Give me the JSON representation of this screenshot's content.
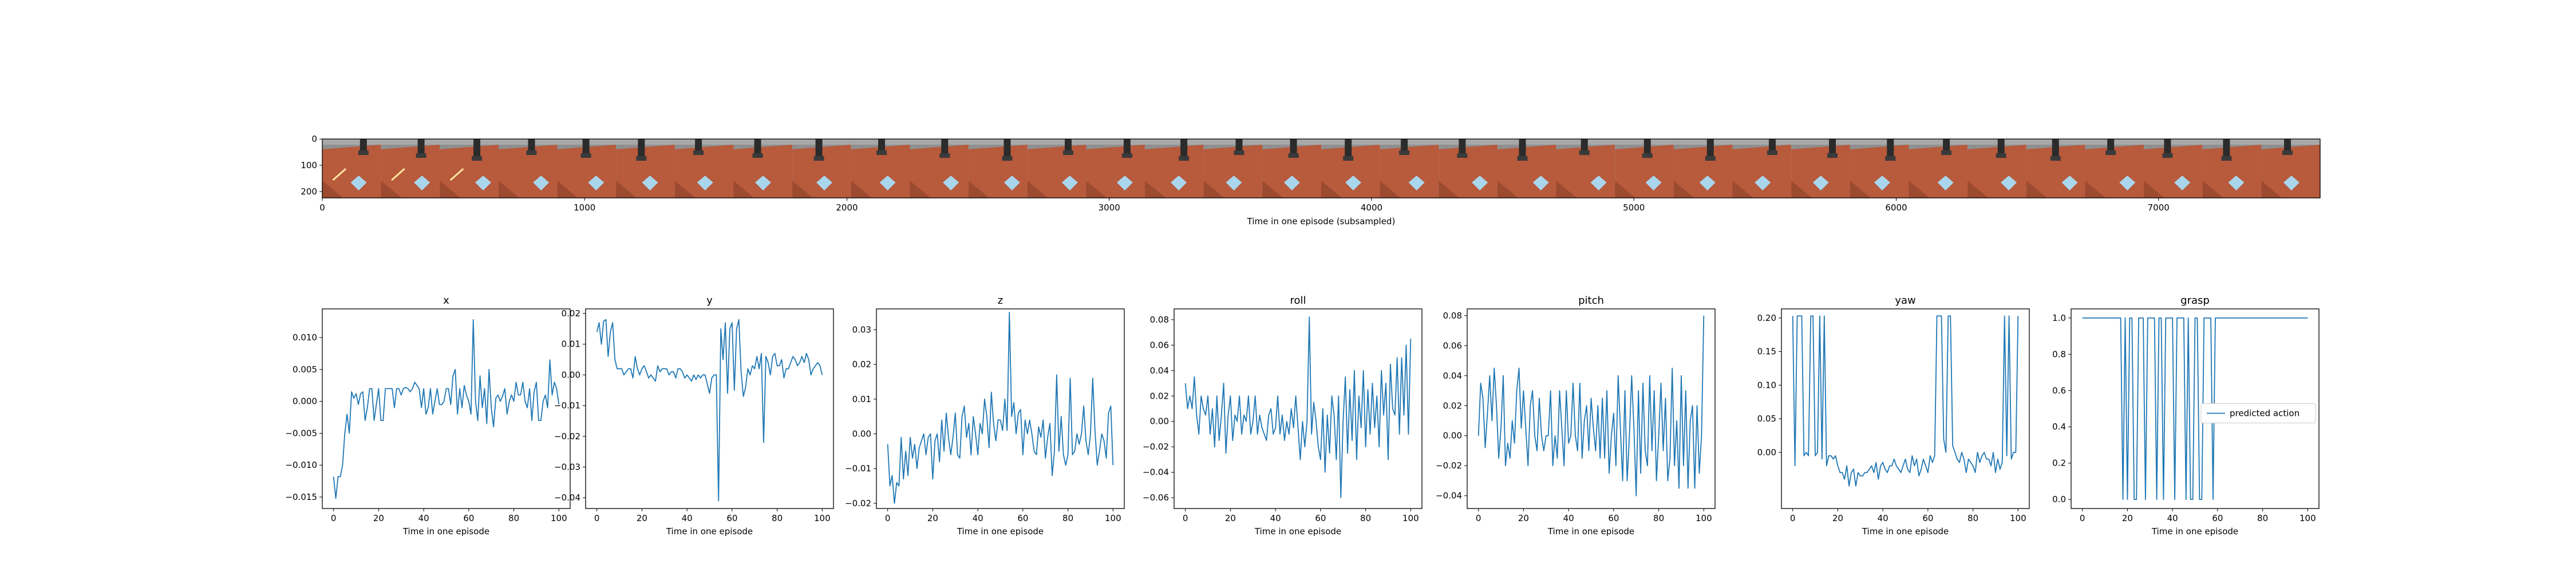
{
  "filmstrip": {
    "xlabel": "Time in one episode (subsampled)",
    "xticks": [
      0,
      1000,
      2000,
      3000,
      4000,
      5000,
      6000,
      7000
    ],
    "yticks": [
      0,
      100,
      200
    ],
    "xlim": [
      0,
      7616
    ],
    "ylim": [
      224,
      0
    ],
    "frame_count": 34
  },
  "colors": {
    "line": "#1f77b4",
    "axes": "#000000",
    "wall": "#8f8f8f",
    "table": "#b85a3c",
    "cloth": "#a9d6ec",
    "gripper": "#2b2b2b",
    "arrow": "#ffe7a0"
  },
  "chart_data": [
    {
      "type": "line",
      "title": "x",
      "xlabel": "Time in one episode",
      "ylabel": "",
      "xlim": [
        -5,
        105
      ],
      "ylim": [
        -0.0168,
        0.0145
      ],
      "xticks": [
        0,
        20,
        40,
        60,
        80,
        100
      ],
      "yticks": [
        -0.015,
        -0.01,
        -0.005,
        0.0,
        0.005,
        0.01
      ],
      "ytick_labels": [
        "−0.015",
        "−0.010",
        "−0.005",
        "0.000",
        "0.005",
        "0.010"
      ],
      "series": [
        {
          "values": [
            -0.0118,
            -0.0152,
            -0.0118,
            -0.0118,
            -0.01,
            -0.005,
            -0.002,
            -0.005,
            0.0015,
            0.0005,
            0.0012,
            -0.0005,
            0.0012,
            0.0015,
            -0.003,
            -0.001,
            0.002,
            0.002,
            -0.003,
            -0.0005,
            0.002,
            -0.003,
            -0.003,
            0.002,
            0.002,
            0.002,
            0.002,
            -0.001,
            0.002,
            0.002,
            0.001,
            0.002,
            0.0022,
            0.002,
            0.0015,
            0.002,
            0.003,
            0.0025,
            0.002,
            -0.001,
            0.002,
            -0.002,
            -0.001,
            0.002,
            -0.002,
            0.0,
            0.002,
            -0.0005,
            -0.0005,
            0.0,
            0.002,
            0.002,
            -0.0005,
            0.004,
            0.005,
            -0.002,
            0.002,
            -0.001,
            0.0025,
            0.001,
            0.0,
            -0.002,
            0.0128,
            0.0,
            -0.003,
            0.004,
            -0.001,
            0.002,
            -0.0035,
            0.005,
            -0.001,
            -0.004,
            0.0005,
            0.001,
            0.0,
            0.0008,
            0.002,
            -0.002,
            0.0,
            0.001,
            0.0,
            0.003,
            0.001,
            0.001,
            0.003,
            0.0,
            -0.001,
            0.002,
            -0.003,
            0.0015,
            0.003,
            -0.003,
            -0.003,
            0.0,
            0.001,
            -0.001,
            0.0065,
            0.001,
            0.003,
            0.002,
            -0.0005
          ]
        }
      ]
    },
    {
      "type": "line",
      "title": "y",
      "xlabel": "Time in one episode",
      "ylabel": "",
      "xlim": [
        -5,
        105
      ],
      "ylim": [
        -0.0435,
        0.0215
      ],
      "xticks": [
        0,
        20,
        40,
        60,
        80,
        100
      ],
      "yticks": [
        -0.04,
        -0.03,
        -0.02,
        -0.01,
        0.0,
        0.01,
        0.02
      ],
      "ytick_labels": [
        "−0.04",
        "−0.03",
        "−0.02",
        "−0.01",
        "0.00",
        "0.01",
        "0.02"
      ],
      "series": [
        {
          "values": [
            0.014,
            0.017,
            0.01,
            0.0175,
            0.018,
            0.006,
            0.014,
            0.017,
            0.005,
            0.002,
            0.002,
            0.002,
            0.0,
            0.001,
            0.002,
            0.002,
            -0.001,
            0.006,
            0.002,
            0.0,
            0.002,
            0.003,
            0.001,
            -0.001,
            0.0,
            -0.001,
            -0.002,
            0.003,
            0.001,
            0.002,
            0.002,
            0.002,
            0.0,
            0.001,
            0.001,
            -0.001,
            0.002,
            0.002,
            0.001,
            -0.001,
            0.0,
            -0.001,
            -0.002,
            0.0,
            -0.0015,
            0.0,
            -0.001,
            0.0,
            0.0,
            -0.003,
            -0.006,
            -0.001,
            0.0,
            0.0,
            -0.041,
            0.015,
            0.005,
            0.017,
            -0.006,
            0.015,
            0.017,
            -0.005,
            0.015,
            0.018,
            0.001,
            -0.007,
            -0.004,
            0.002,
            0.0,
            0.003,
            0.002,
            0.006,
            0.002,
            0.007,
            -0.022,
            0.006,
            0.004,
            0.0,
            0.006,
            0.007,
            0.003,
            0.003,
            0.005,
            -0.001,
            0.002,
            0.002,
            0.004,
            0.006,
            0.005,
            0.003,
            0.004,
            0.006,
            0.004,
            0.007,
            0.005,
            0.0,
            0.002,
            0.003,
            0.004,
            0.003,
            0.0
          ]
        }
      ]
    },
    {
      "type": "line",
      "title": "z",
      "xlabel": "Time in one episode",
      "ylabel": "",
      "xlim": [
        -5,
        105
      ],
      "ylim": [
        -0.0215,
        0.036
      ],
      "xticks": [
        0,
        20,
        40,
        60,
        80,
        100
      ],
      "yticks": [
        -0.02,
        -0.01,
        0.0,
        0.01,
        0.02,
        0.03
      ],
      "ytick_labels": [
        "−0.02",
        "−0.01",
        "0.00",
        "0.01",
        "0.02",
        "0.03"
      ],
      "series": [
        {
          "values": [
            -0.003,
            -0.015,
            -0.012,
            -0.02,
            -0.014,
            -0.015,
            -0.001,
            -0.013,
            -0.005,
            -0.012,
            -0.001,
            -0.007,
            -0.003,
            -0.01,
            -0.004,
            -0.002,
            0.0,
            -0.006,
            -0.001,
            0.0,
            -0.013,
            -0.002,
            0.0,
            -0.008,
            0.004,
            -0.005,
            0.006,
            -0.001,
            -0.006,
            -0.001,
            0.006,
            -0.006,
            -0.007,
            0.005,
            0.008,
            -0.001,
            0.003,
            -0.006,
            0.005,
            0.0,
            -0.006,
            0.003,
            0.0,
            0.01,
            0.005,
            -0.004,
            0.012,
            0.003,
            -0.002,
            0.004,
            0.004,
            0.001,
            0.01,
            0.001,
            0.035,
            0.005,
            0.009,
            0.0,
            0.006,
            0.007,
            -0.006,
            0.004,
            0.0,
            0.004,
            0.0,
            -0.005,
            -0.006,
            0.002,
            -0.001,
            0.004,
            -0.007,
            -0.001,
            0.003,
            -0.012,
            -0.005,
            0.017,
            -0.005,
            0.005,
            -0.006,
            -0.009,
            -0.006,
            0.016,
            -0.006,
            -0.005,
            0.0,
            -0.003,
            0.0,
            0.008,
            -0.002,
            -0.006,
            0.0,
            0.016,
            0.001,
            -0.009,
            -0.005,
            0.0,
            -0.002,
            -0.007,
            0.006,
            0.008,
            -0.009
          ]
        }
      ]
    },
    {
      "type": "line",
      "title": "roll",
      "xlabel": "Time in one episode",
      "ylabel": "",
      "xlim": [
        -5,
        105
      ],
      "ylim": [
        -0.0685,
        0.0885
      ],
      "xticks": [
        0,
        20,
        40,
        60,
        80,
        100
      ],
      "yticks": [
        -0.06,
        -0.04,
        -0.02,
        0.0,
        0.02,
        0.04,
        0.06,
        0.08
      ],
      "ytick_labels": [
        "−0.06",
        "−0.04",
        "−0.02",
        "0.00",
        "0.02",
        "0.04",
        "0.06",
        "0.08"
      ],
      "series": [
        {
          "values": [
            0.03,
            0.01,
            0.02,
            0.01,
            0.035,
            0.005,
            -0.01,
            0.02,
            0.01,
            0.005,
            0.02,
            -0.01,
            0.01,
            -0.02,
            0.02,
            -0.015,
            0.005,
            0.03,
            -0.025,
            0.005,
            0.02,
            -0.015,
            0.005,
            0.0,
            0.02,
            -0.01,
            0.005,
            0.0,
            0.02,
            -0.01,
            0.0,
            0.02,
            -0.01,
            0.005,
            -0.005,
            -0.01,
            -0.015,
            0.005,
            0.01,
            -0.01,
            -0.005,
            0.02,
            -0.01,
            0.005,
            -0.015,
            0.0,
            -0.01,
            0.01,
            -0.005,
            0.02,
            -0.005,
            -0.03,
            0.0,
            -0.02,
            0.0,
            0.082,
            -0.01,
            0.015,
            0.0,
            -0.02,
            -0.03,
            0.01,
            -0.04,
            0.005,
            -0.025,
            0.02,
            0.005,
            -0.03,
            0.02,
            -0.06,
            0.0,
            0.035,
            -0.025,
            0.025,
            -0.015,
            0.04,
            -0.03,
            0.02,
            -0.005,
            0.04,
            -0.02,
            0.025,
            -0.01,
            0.03,
            -0.005,
            0.02,
            -0.02,
            0.04,
            0.005,
            0.03,
            -0.03,
            0.045,
            0.01,
            0.005,
            0.05,
            -0.01,
            0.05,
            0.005,
            0.06,
            -0.01,
            0.065
          ]
        }
      ]
    },
    {
      "type": "line",
      "title": "pitch",
      "xlabel": "Time in one episode",
      "ylabel": "",
      "xlim": [
        -5,
        105
      ],
      "ylim": [
        -0.0485,
        0.0845
      ],
      "xticks": [
        0,
        20,
        40,
        60,
        80,
        100
      ],
      "yticks": [
        -0.04,
        -0.02,
        0.0,
        0.02,
        0.04,
        0.06,
        0.08
      ],
      "ytick_labels": [
        "−0.04",
        "−0.02",
        "0.00",
        "0.02",
        "0.04",
        "0.06",
        "0.08"
      ],
      "series": [
        {
          "values": [
            0.0,
            0.035,
            0.025,
            -0.008,
            0.015,
            0.04,
            0.01,
            0.045,
            0.02,
            -0.015,
            0.005,
            0.04,
            -0.02,
            -0.005,
            -0.015,
            0.01,
            -0.005,
            0.03,
            0.045,
            0.005,
            0.03,
            0.005,
            -0.02,
            0.02,
            0.03,
            0.0,
            -0.01,
            0.025,
            0.0,
            -0.01,
            0.0,
            0.0,
            0.03,
            -0.02,
            0.0,
            -0.015,
            0.03,
            0.005,
            -0.02,
            0.03,
            -0.005,
            0.0,
            0.035,
            0.0,
            -0.01,
            0.035,
            -0.015,
            0.01,
            0.02,
            -0.01,
            0.025,
            0.005,
            -0.01,
            0.02,
            -0.015,
            0.025,
            -0.015,
            0.03,
            -0.025,
            0.0,
            0.015,
            -0.02,
            0.04,
            0.005,
            -0.03,
            0.03,
            -0.03,
            0.0,
            0.04,
            0.005,
            -0.04,
            0.03,
            -0.025,
            0.035,
            -0.01,
            -0.02,
            0.04,
            -0.01,
            0.03,
            -0.03,
            0.0,
            0.035,
            -0.01,
            0.025,
            -0.03,
            -0.015,
            0.045,
            -0.02,
            0.01,
            -0.035,
            0.04,
            -0.02,
            0.03,
            -0.035,
            0.01,
            0.02,
            -0.035,
            0.02,
            -0.025,
            0.0,
            0.08
          ]
        }
      ]
    },
    {
      "type": "line",
      "title": "yaw",
      "xlabel": "Time in one episode",
      "ylabel": "",
      "xlim": [
        -5,
        105
      ],
      "ylim": [
        -0.0835,
        0.2135
      ],
      "xticks": [
        0,
        20,
        40,
        60,
        80,
        100
      ],
      "yticks": [
        0.0,
        0.05,
        0.1,
        0.15,
        0.2
      ],
      "ytick_labels": [
        "0.00",
        "0.05",
        "0.10",
        "0.15",
        "0.20"
      ],
      "series": [
        {
          "values": [
            0.203,
            -0.02,
            0.203,
            0.203,
            0.203,
            -0.005,
            0.0,
            -0.005,
            0.203,
            0.203,
            -0.005,
            0.0,
            0.203,
            -0.01,
            0.203,
            -0.02,
            -0.005,
            -0.005,
            -0.01,
            -0.005,
            -0.02,
            -0.03,
            -0.03,
            -0.04,
            -0.02,
            -0.05,
            -0.03,
            -0.025,
            -0.05,
            -0.03,
            -0.035,
            -0.035,
            -0.03,
            -0.03,
            -0.025,
            -0.02,
            -0.03,
            -0.015,
            -0.04,
            -0.02,
            -0.015,
            -0.025,
            -0.03,
            -0.02,
            -0.02,
            -0.01,
            -0.02,
            -0.025,
            -0.03,
            -0.02,
            -0.01,
            -0.025,
            -0.03,
            -0.005,
            -0.02,
            -0.01,
            -0.035,
            -0.025,
            -0.01,
            -0.02,
            -0.03,
            -0.005,
            -0.015,
            -0.005,
            0.203,
            0.203,
            0.203,
            0.02,
            0.0,
            0.203,
            0.203,
            0.01,
            0.0,
            -0.01,
            -0.015,
            0.0,
            -0.01,
            -0.03,
            -0.01,
            -0.015,
            -0.02,
            -0.03,
            0.0,
            -0.015,
            -0.005,
            0.0,
            -0.01,
            -0.01,
            -0.02,
            0.0,
            -0.03,
            -0.01,
            -0.025,
            -0.015,
            0.203,
            -0.005,
            0.203,
            -0.01,
            0.0,
            0.0,
            0.203
          ]
        }
      ]
    },
    {
      "type": "line",
      "title": "grasp",
      "xlabel": "Time in one episode",
      "ylabel": "",
      "xlim": [
        -5,
        105
      ],
      "ylim": [
        -0.05,
        1.05
      ],
      "xticks": [
        0,
        20,
        40,
        60,
        80,
        100
      ],
      "yticks": [
        0.0,
        0.2,
        0.4,
        0.6,
        0.8,
        1.0
      ],
      "ytick_labels": [
        "0.0",
        "0.2",
        "0.4",
        "0.6",
        "0.8",
        "1.0"
      ],
      "legend": {
        "entries": [
          "predicted action"
        ],
        "placement": "center right"
      },
      "series": [
        {
          "name": "predicted action",
          "values": [
            1,
            1,
            1,
            1,
            1,
            1,
            1,
            1,
            1,
            1,
            1,
            1,
            1,
            1,
            1,
            1,
            1,
            1,
            0,
            1,
            0,
            1,
            1,
            0,
            0,
            1,
            1,
            1,
            0,
            1,
            1,
            1,
            1,
            0,
            1,
            1,
            0,
            1,
            1,
            1,
            1,
            0,
            1,
            1,
            1,
            1,
            0,
            1,
            0,
            0,
            1,
            1,
            0,
            0,
            1,
            1,
            1,
            1,
            0,
            1,
            1,
            1,
            1,
            1,
            1,
            1,
            1,
            1,
            1,
            1,
            1,
            1,
            1,
            1,
            1,
            1,
            1,
            1,
            1,
            1,
            1,
            1,
            1,
            1,
            1,
            1,
            1,
            1,
            1,
            1,
            1,
            1,
            1,
            1,
            1,
            1,
            1,
            1,
            1,
            1,
            1
          ]
        }
      ]
    }
  ]
}
